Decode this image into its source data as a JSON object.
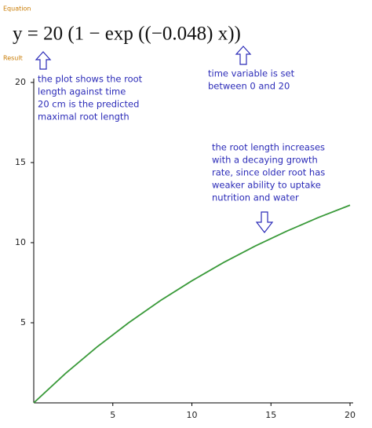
{
  "chart_data": {
    "type": "line",
    "equation_label": "Equation",
    "equation": "y = 20 (1 − exp ((−0.048) x))",
    "result_label": "Result",
    "x": [
      0,
      2,
      4,
      6,
      8,
      10,
      12,
      14,
      16,
      18,
      20
    ],
    "values": [
      0,
      1.83,
      3.49,
      5.0,
      6.38,
      7.62,
      8.76,
      9.79,
      10.72,
      11.57,
      12.34
    ],
    "color": "#3a9a3a",
    "xlim": [
      0,
      20
    ],
    "xticks": [
      5,
      10,
      15,
      20
    ],
    "ylim": [
      0,
      20
    ],
    "yticks": [
      5,
      10,
      15,
      20
    ],
    "annotations": [
      {
        "lines": [
          "the plot shows the root",
          "length against time",
          "20 cm is the predicted",
          "maximal root length"
        ]
      },
      {
        "lines": [
          "time variable is set",
          "between 0 and 20"
        ]
      },
      {
        "lines": [
          "the root length increases",
          "with a decaying growth",
          "rate, since older root has",
          "weaker ability to uptake",
          "nutrition and water"
        ]
      }
    ]
  }
}
